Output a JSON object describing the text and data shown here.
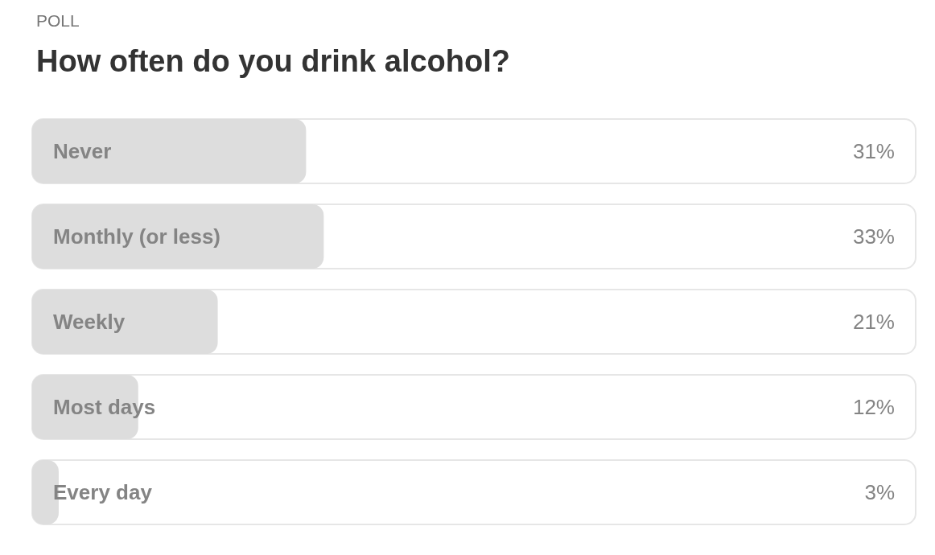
{
  "chart_data": {
    "type": "bar",
    "orientation": "horizontal",
    "subtitle": "POLL",
    "title": "How often do you drink alcohol?",
    "categories": [
      "Never",
      "Monthly (or less)",
      "Weekly",
      "Most days",
      "Every day"
    ],
    "values": [
      31,
      33,
      21,
      12,
      3
    ],
    "value_labels": [
      "31%",
      "33%",
      "21%",
      "12%",
      "3%"
    ],
    "color": "#dddddd",
    "xlim": [
      0,
      100
    ],
    "tick_labels": "y"
  }
}
